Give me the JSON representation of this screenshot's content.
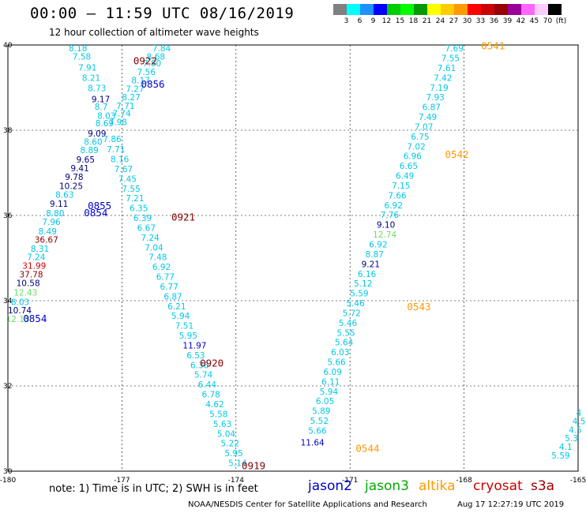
{
  "header": {
    "title": "00:00 — 11:59 UTC 08/16/2019",
    "subtitle": "12 hour collection of altimeter wave heights"
  },
  "scale": {
    "colors": [
      "#808080",
      "#00ffff",
      "#1e90ff",
      "#0000ff",
      "#00cc00",
      "#00ff00",
      "#009900",
      "#ffff00",
      "#ffcc00",
      "#ff9900",
      "#ff0000",
      "#cc0000",
      "#990000",
      "#990099",
      "#ff66ff",
      "#ffccff",
      "#000000"
    ],
    "labels": [
      "3",
      "6",
      "9",
      "12",
      "15",
      "18",
      "21",
      "24",
      "27",
      "30",
      "33",
      "36",
      "39",
      "42",
      "45",
      "70",
      "(ft)"
    ]
  },
  "footer": {
    "note": "note:  1) Time is in UTC;  2) SWH is in feet",
    "missions": [
      {
        "name": "jason2",
        "color": "#0000cc"
      },
      {
        "name": "jason3",
        "color": "#00aa00"
      },
      {
        "name": "altika",
        "color": "#ff9900"
      },
      {
        "name": "cryosat",
        "color": "#cc0000"
      },
      {
        "name": "s3a",
        "color": "#990000"
      }
    ],
    "credit": "NOAA/NESDIS Center for Satellite Applications and Research",
    "created": "Aug 17 12:27:19 UTC 2019"
  },
  "chart_data": {
    "type": "scatter",
    "title": "00:00 — 11:59 UTC 08/16/2019",
    "subtitle": "12 hour collection of altimeter wave heights",
    "xlim": [
      -180,
      -165
    ],
    "ylim": [
      30,
      40
    ],
    "x_ticks": [
      "-180",
      "-177",
      "-174",
      "-171",
      "-168",
      "-165"
    ],
    "y_ticks": [
      "30",
      "32",
      "34",
      "36",
      "38",
      "40"
    ],
    "grid": true,
    "colors": {
      "cyan": "#00c8e6",
      "blue": "#0000cc",
      "navy": "#000080",
      "green": "#55dd55",
      "orange": "#ff9900",
      "darkred": "#880000",
      "red": "#cc0000",
      "lightgreen": "#66dd66"
    },
    "points": [
      [
        "8.18",
        -178.4,
        39.85,
        "cyan"
      ],
      [
        "7.58",
        -178.3,
        39.66,
        "cyan"
      ],
      [
        "7.91",
        -178.15,
        39.4,
        "cyan"
      ],
      [
        "8.21",
        -178.05,
        39.16,
        "cyan"
      ],
      [
        "8.73",
        -177.9,
        38.92,
        "cyan"
      ],
      [
        "9.17",
        -177.8,
        38.66,
        "navy"
      ],
      [
        "8.7",
        -177.72,
        38.48,
        "cyan"
      ],
      [
        "8.03",
        -177.65,
        38.27,
        "cyan"
      ],
      [
        "8.69",
        -177.7,
        38.09,
        "cyan"
      ],
      [
        "9.09",
        -177.9,
        37.85,
        "navy"
      ],
      [
        "8.60",
        -178.0,
        37.66,
        "cyan"
      ],
      [
        "8.89",
        -178.1,
        37.46,
        "cyan"
      ],
      [
        "9.65",
        -178.2,
        37.24,
        "navy"
      ],
      [
        "9.41",
        -178.35,
        37.04,
        "navy"
      ],
      [
        "9.78",
        -178.5,
        36.83,
        "navy"
      ],
      [
        "10.25",
        -178.65,
        36.62,
        "navy"
      ],
      [
        "8.63",
        -178.75,
        36.42,
        "cyan"
      ],
      [
        "9.11",
        -178.9,
        36.2,
        "navy"
      ],
      [
        "8.80",
        -179.0,
        35.98,
        "cyan"
      ],
      [
        "7.96",
        -179.1,
        35.78,
        "cyan"
      ],
      [
        "8.49",
        -179.2,
        35.56,
        "cyan"
      ],
      [
        "36.67",
        -179.3,
        35.36,
        "darkred"
      ],
      [
        "8.31",
        -179.4,
        35.15,
        "cyan"
      ],
      [
        "7.24",
        -179.5,
        34.95,
        "cyan"
      ],
      [
        "31.99",
        -179.62,
        34.75,
        "red"
      ],
      [
        "37.78",
        -179.7,
        34.55,
        "darkred"
      ],
      [
        "10.58",
        -179.78,
        34.34,
        "navy"
      ],
      [
        "12.43",
        -179.85,
        34.12,
        "lightgreen"
      ],
      [
        "8.03",
        -179.92,
        33.9,
        "cyan"
      ],
      [
        "10.74",
        -180.0,
        33.7,
        "navy"
      ],
      [
        "12.13",
        -180.05,
        33.5,
        "lightgreen"
      ],
      [
        "7.84",
        -176.2,
        39.85,
        "cyan"
      ],
      [
        "8.68",
        -176.35,
        39.66,
        "cyan"
      ],
      [
        "7.80",
        -176.45,
        39.5,
        "cyan"
      ],
      [
        "7.56",
        -176.6,
        39.3,
        "cyan"
      ],
      [
        "8.17",
        -176.75,
        39.1,
        "cyan"
      ],
      [
        "7.27",
        -176.9,
        38.9,
        "cyan"
      ],
      [
        "8.27",
        -177.0,
        38.7,
        "cyan"
      ],
      [
        "7.71",
        -177.15,
        38.5,
        "cyan"
      ],
      [
        "7.74",
        -177.25,
        38.32,
        "cyan"
      ],
      [
        "7.98",
        -177.35,
        38.12,
        "cyan"
      ],
      [
        "7.86",
        -177.5,
        37.72,
        "cyan"
      ],
      [
        "7.71",
        -177.4,
        37.48,
        "cyan"
      ],
      [
        "8.16",
        -177.3,
        37.25,
        "cyan"
      ],
      [
        "7.67",
        -177.2,
        37.02,
        "cyan"
      ],
      [
        "7.45",
        -177.1,
        36.79,
        "cyan"
      ],
      [
        "7.55",
        -177.0,
        36.56,
        "cyan"
      ],
      [
        "7.21",
        -176.9,
        36.33,
        "cyan"
      ],
      [
        "6.35",
        -176.8,
        36.1,
        "cyan"
      ],
      [
        "6.39",
        -176.7,
        35.87,
        "cyan"
      ],
      [
        "6.67",
        -176.6,
        35.64,
        "cyan"
      ],
      [
        "7.24",
        -176.5,
        35.41,
        "cyan"
      ],
      [
        "7.04",
        -176.4,
        35.18,
        "cyan"
      ],
      [
        "7.48",
        -176.3,
        34.95,
        "cyan"
      ],
      [
        "6.92",
        -176.2,
        34.72,
        "cyan"
      ],
      [
        "6.77",
        -176.1,
        34.49,
        "cyan"
      ],
      [
        "6.77",
        -176.0,
        34.26,
        "cyan"
      ],
      [
        "6.87",
        -175.9,
        34.03,
        "cyan"
      ],
      [
        "6.21",
        -175.8,
        33.8,
        "cyan"
      ],
      [
        "5.94",
        -175.7,
        33.57,
        "cyan"
      ],
      [
        "7.51",
        -175.6,
        33.34,
        "cyan"
      ],
      [
        "5.95",
        -175.5,
        33.11,
        "cyan"
      ],
      [
        "11.97",
        -175.4,
        32.88,
        "blue"
      ],
      [
        "6.53",
        -175.3,
        32.65,
        "cyan"
      ],
      [
        "6.36",
        -175.2,
        32.42,
        "cyan"
      ],
      [
        "5.74",
        -175.1,
        32.19,
        "cyan"
      ],
      [
        "6.44",
        -175.0,
        31.96,
        "cyan"
      ],
      [
        "6.78",
        -174.9,
        31.73,
        "cyan"
      ],
      [
        "4.62",
        -174.8,
        31.5,
        "cyan"
      ],
      [
        "5.58",
        -174.7,
        31.27,
        "cyan"
      ],
      [
        "5.63",
        -174.6,
        31.04,
        "cyan"
      ],
      [
        "5.04",
        -174.5,
        30.81,
        "cyan"
      ],
      [
        "5.22",
        -174.4,
        30.58,
        "cyan"
      ],
      [
        "5.95",
        -174.3,
        30.35,
        "cyan"
      ],
      [
        "5.14",
        -174.2,
        30.12,
        "cyan"
      ],
      [
        "7.69",
        -168.5,
        39.85,
        "cyan"
      ],
      [
        "7.55",
        -168.6,
        39.62,
        "cyan"
      ],
      [
        "7.61",
        -168.7,
        39.39,
        "cyan"
      ],
      [
        "7.42",
        -168.8,
        39.16,
        "cyan"
      ],
      [
        "7.19",
        -168.9,
        38.93,
        "cyan"
      ],
      [
        "7.93",
        -169.0,
        38.7,
        "cyan"
      ],
      [
        "6.87",
        -169.1,
        38.47,
        "cyan"
      ],
      [
        "7.49",
        -169.2,
        38.24,
        "cyan"
      ],
      [
        "7.07",
        -169.3,
        38.01,
        "cyan"
      ],
      [
        "6.75",
        -169.4,
        37.78,
        "cyan"
      ],
      [
        "7.02",
        -169.5,
        37.55,
        "cyan"
      ],
      [
        "6.96",
        -169.6,
        37.32,
        "cyan"
      ],
      [
        "6.65",
        -169.7,
        37.09,
        "cyan"
      ],
      [
        "6.49",
        -169.8,
        36.86,
        "cyan"
      ],
      [
        "7.15",
        -169.9,
        36.63,
        "cyan"
      ],
      [
        "7.66",
        -170.0,
        36.4,
        "cyan"
      ],
      [
        "6.92",
        -170.1,
        36.17,
        "cyan"
      ],
      [
        "7.76",
        -170.2,
        35.94,
        "cyan"
      ],
      [
        "9.10",
        -170.3,
        35.71,
        "navy"
      ],
      [
        "12.74",
        -170.4,
        35.48,
        "lightgreen"
      ],
      [
        "6.92",
        -170.5,
        35.25,
        "cyan"
      ],
      [
        "8.87",
        -170.6,
        35.02,
        "cyan"
      ],
      [
        "9.21",
        -170.7,
        34.79,
        "navy"
      ],
      [
        "6.16",
        -170.8,
        34.56,
        "cyan"
      ],
      [
        "5.12",
        -170.9,
        34.33,
        "cyan"
      ],
      [
        "5.59",
        -171.0,
        34.1,
        "cyan"
      ],
      [
        "5.46",
        -171.1,
        33.87,
        "cyan"
      ],
      [
        "5.72",
        -171.2,
        33.64,
        "cyan"
      ],
      [
        "5.46",
        -171.3,
        33.41,
        "cyan"
      ],
      [
        "5.55",
        -171.35,
        33.18,
        "cyan"
      ],
      [
        "5.64",
        -171.4,
        32.95,
        "cyan"
      ],
      [
        "6.03",
        -171.5,
        32.72,
        "cyan"
      ],
      [
        "5.66",
        -171.6,
        32.49,
        "cyan"
      ],
      [
        "6.09",
        -171.7,
        32.26,
        "cyan"
      ],
      [
        "6.11",
        -171.75,
        32.03,
        "cyan"
      ],
      [
        "5.94",
        -171.8,
        31.8,
        "cyan"
      ],
      [
        "6.05",
        -171.9,
        31.57,
        "cyan"
      ],
      [
        "5.89",
        -172.0,
        31.34,
        "cyan"
      ],
      [
        "5.52",
        -172.05,
        31.11,
        "cyan"
      ],
      [
        "5.66",
        -172.1,
        30.88,
        "cyan"
      ],
      [
        "11.64",
        -172.3,
        30.6,
        "blue"
      ],
      [
        "4",
        -165.05,
        31.3,
        "cyan"
      ],
      [
        "4.5",
        -165.15,
        31.1,
        "cyan"
      ],
      [
        "4.5",
        -165.25,
        30.9,
        "cyan"
      ],
      [
        "5.3",
        -165.35,
        30.7,
        "cyan"
      ],
      [
        "4.1",
        -165.5,
        30.5,
        "cyan"
      ],
      [
        "5.59",
        -165.7,
        30.3,
        "cyan"
      ]
    ],
    "annotations": [
      [
        "0922",
        -176.7,
        39.55,
        "darkred"
      ],
      [
        "0856",
        -176.5,
        39.0,
        "blue"
      ],
      [
        "0855",
        -177.9,
        36.15,
        "blue"
      ],
      [
        "0854",
        -178.0,
        35.98,
        "blue"
      ],
      [
        "0921",
        -175.7,
        35.88,
        "darkred"
      ],
      [
        "0854",
        -179.6,
        33.5,
        "blue"
      ],
      [
        "0920",
        -174.95,
        32.45,
        "darkred"
      ],
      [
        "0919",
        -173.85,
        30.05,
        "darkred"
      ],
      [
        "0541",
        -167.55,
        39.9,
        "orange"
      ],
      [
        "0542",
        -168.5,
        37.35,
        "orange"
      ],
      [
        "0543",
        -169.5,
        33.78,
        "orange"
      ],
      [
        "0544",
        -170.85,
        30.45,
        "orange"
      ]
    ]
  }
}
